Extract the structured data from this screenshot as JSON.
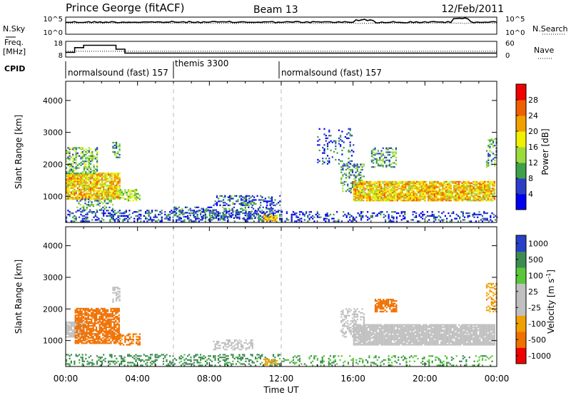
{
  "header": {
    "station": "Prince George (fitACF)",
    "beam": "Beam 13",
    "date": "12/Feb/2011"
  },
  "side_labels": {
    "nsky": "N.Sky",
    "nsearch": "N.Search",
    "freq_line1": "Freq.",
    "freq_line2": "[MHz]",
    "nave": "Nave",
    "cpid": "CPID"
  },
  "cpid_segments": [
    {
      "label": "normalsound (fast) 157",
      "start_hour": 0,
      "end_hour": 6
    },
    {
      "label": "themis 3300",
      "start_hour": 6,
      "end_hour": 12
    },
    {
      "label": "normalsound (fast) 157",
      "start_hour": 12,
      "end_hour": 24
    }
  ],
  "x_axis": {
    "label": "Time UT",
    "ticks": [
      "00:00",
      "04:00",
      "08:00",
      "12:00",
      "16:00",
      "20:00",
      "00:00"
    ],
    "tick_hours": [
      0,
      4,
      8,
      12,
      16,
      20,
      24
    ]
  },
  "noise_panel": {
    "left_ticks": [
      "10^5",
      "10^0"
    ],
    "right_ticks": [
      "10^5",
      "10^0"
    ]
  },
  "freq_panel": {
    "left_ticks": [
      "18",
      "8"
    ],
    "right_ticks": [
      "60",
      "0"
    ],
    "left_range": [
      8,
      18
    ],
    "right_range": [
      0,
      60
    ],
    "freq_steps": [
      {
        "start_hour": 0,
        "end_hour": 0.5,
        "value": 11.0
      },
      {
        "start_hour": 0.5,
        "end_hour": 1.0,
        "value": 14.0
      },
      {
        "start_hour": 1.0,
        "end_hour": 2.8,
        "value": 15.5
      },
      {
        "start_hour": 2.8,
        "end_hour": 3.3,
        "value": 13.0
      },
      {
        "start_hour": 3.3,
        "end_hour": 24,
        "value": 10.5
      }
    ],
    "nave_level": 22
  },
  "chart_data": [
    {
      "type": "heatmap",
      "quantity": "power",
      "ylabel": "Slant Range [km]",
      "xlabel": "Time UT",
      "ylim": [
        180,
        4600
      ],
      "xlim_hours": [
        0,
        24
      ],
      "y_ticks": [
        1000,
        2000,
        3000,
        4000
      ],
      "colorbar": {
        "label": "Power [dB]",
        "ticks": [
          "4",
          "8",
          "12",
          "16",
          "20",
          "24",
          "28"
        ],
        "range": [
          0,
          30
        ],
        "colors": [
          "#0000f0",
          "#2c3ec8",
          "#3ea04a",
          "#9adc3c",
          "#f0f000",
          "#f0a000",
          "#f06000",
          "#f00000"
        ]
      },
      "regions": [
        {
          "t0": 0.0,
          "t1": 3.0,
          "r0": 900,
          "r1": 1700,
          "level": 20,
          "density": 0.85
        },
        {
          "t0": 0.0,
          "t1": 1.8,
          "r0": 1700,
          "r1": 2500,
          "level": 12,
          "density": 0.5
        },
        {
          "t0": 0.6,
          "t1": 2.6,
          "r0": 550,
          "r1": 900,
          "level": 10,
          "density": 0.35
        },
        {
          "t0": 2.6,
          "t1": 3.0,
          "r0": 2200,
          "r1": 2700,
          "level": 10,
          "density": 0.5
        },
        {
          "t0": 3.0,
          "t1": 4.1,
          "r0": 850,
          "r1": 1200,
          "level": 14,
          "density": 0.6
        },
        {
          "t0": 0.0,
          "t1": 12.0,
          "r0": 200,
          "r1": 560,
          "level": 6,
          "density": 0.35
        },
        {
          "t0": 6.0,
          "t1": 11.5,
          "r0": 300,
          "r1": 650,
          "level": 7,
          "density": 0.3
        },
        {
          "t0": 8.2,
          "t1": 10.4,
          "r0": 700,
          "r1": 1000,
          "level": 7,
          "density": 0.45
        },
        {
          "t0": 10.0,
          "t1": 12.0,
          "r0": 700,
          "r1": 1000,
          "level": 6,
          "density": 0.25
        },
        {
          "t0": 11.0,
          "t1": 11.8,
          "r0": 220,
          "r1": 420,
          "level": 22,
          "density": 0.7
        },
        {
          "t0": 15.3,
          "t1": 16.6,
          "r0": 1100,
          "r1": 2000,
          "level": 10,
          "density": 0.4
        },
        {
          "t0": 16.0,
          "t1": 23.9,
          "r0": 850,
          "r1": 1450,
          "level": 20,
          "density": 0.85
        },
        {
          "t0": 17.0,
          "t1": 18.4,
          "r0": 1900,
          "r1": 2500,
          "level": 10,
          "density": 0.4
        },
        {
          "t0": 14.0,
          "t1": 16.0,
          "r0": 2000,
          "r1": 3100,
          "level": 6,
          "density": 0.15
        },
        {
          "t0": 23.4,
          "t1": 24.0,
          "r0": 1900,
          "r1": 2800,
          "level": 10,
          "density": 0.4
        },
        {
          "t0": 12.0,
          "t1": 24.0,
          "r0": 200,
          "r1": 500,
          "level": 5,
          "density": 0.25
        }
      ]
    },
    {
      "type": "heatmap",
      "quantity": "velocity",
      "ylabel": "Slant Range [km]",
      "xlabel": "Time UT",
      "ylim": [
        180,
        4600
      ],
      "xlim_hours": [
        0,
        24
      ],
      "y_ticks": [
        1000,
        2000,
        3000,
        4000
      ],
      "colorbar": {
        "label": "Velocity [m s^-1]",
        "ticks": [
          "1000",
          "500",
          "100",
          "25",
          "-25",
          "-100",
          "-500",
          "-1000"
        ],
        "colors": [
          "#2840c8",
          "#3c8c50",
          "#58c838",
          "#c0c0c0",
          "#c0c0c0",
          "#f0a000",
          "#f07000",
          "#f00000"
        ]
      },
      "regions": [
        {
          "t0": 0.0,
          "t1": 1.0,
          "r0": 1100,
          "r1": 1600,
          "level": -5,
          "density": 0.9
        },
        {
          "t0": 0.5,
          "t1": 3.0,
          "r0": 900,
          "r1": 2000,
          "level": -200,
          "density": 0.75
        },
        {
          "t0": 3.0,
          "t1": 4.1,
          "r0": 850,
          "r1": 1200,
          "level": -150,
          "density": 0.5
        },
        {
          "t0": 2.6,
          "t1": 3.0,
          "r0": 2200,
          "r1": 2700,
          "level": -3,
          "density": 0.5
        },
        {
          "t0": 0.0,
          "t1": 12.0,
          "r0": 200,
          "r1": 560,
          "level": 150,
          "density": 0.3
        },
        {
          "t0": 8.2,
          "t1": 10.4,
          "r0": 700,
          "r1": 1000,
          "level": 0,
          "density": 0.45
        },
        {
          "t0": 11.0,
          "t1": 11.8,
          "r0": 220,
          "r1": 420,
          "level": -60,
          "density": 0.6
        },
        {
          "t0": 15.3,
          "t1": 16.6,
          "r0": 1100,
          "r1": 2000,
          "level": 2,
          "density": 0.4
        },
        {
          "t0": 16.0,
          "t1": 23.9,
          "r0": 850,
          "r1": 1500,
          "level": 0,
          "density": 0.9
        },
        {
          "t0": 17.2,
          "t1": 18.4,
          "r0": 1900,
          "r1": 2300,
          "level": -200,
          "density": 0.7
        },
        {
          "t0": 23.4,
          "t1": 24.0,
          "r0": 1900,
          "r1": 2800,
          "level": -80,
          "density": 0.4
        },
        {
          "t0": 12.0,
          "t1": 24.0,
          "r0": 200,
          "r1": 500,
          "level": 100,
          "density": 0.2
        }
      ]
    }
  ]
}
